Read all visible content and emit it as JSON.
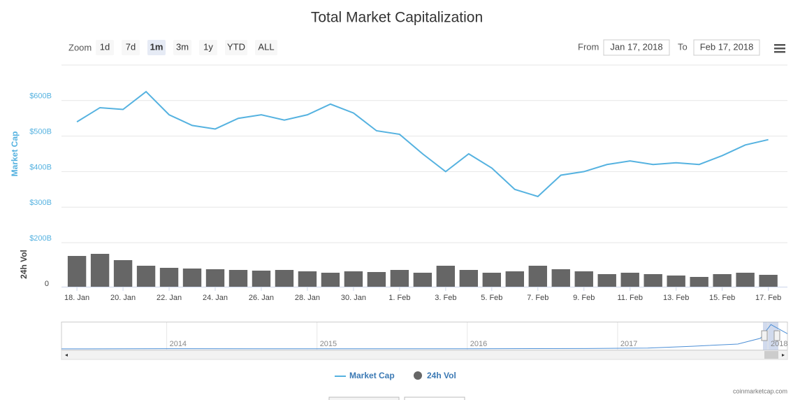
{
  "chart_data": [
    {
      "type": "line",
      "title": "Total Market Capitalization",
      "ylabel": "Market Cap",
      "categories": [
        "18. Jan",
        null,
        "20. Jan",
        null,
        "22. Jan",
        null,
        "24. Jan",
        null,
        "26. Jan",
        null,
        "28. Jan",
        null,
        "30. Jan",
        null,
        "1. Feb",
        null,
        "3. Feb",
        null,
        "5. Feb",
        null,
        "7. Feb",
        null,
        "9. Feb",
        null,
        "11. Feb",
        null,
        "13. Feb",
        null,
        "15. Feb",
        null,
        "17. Feb"
      ],
      "series": [
        {
          "name": "Market Cap",
          "color": "#55b2e0",
          "values": [
            540,
            580,
            575,
            625,
            560,
            530,
            520,
            550,
            560,
            545,
            560,
            590,
            565,
            515,
            505,
            450,
            400,
            450,
            410,
            350,
            330,
            390,
            400,
            420,
            430,
            420,
            425,
            420,
            445,
            475,
            490
          ]
        }
      ],
      "ylim": [
        200,
        700
      ],
      "yticks": [
        {
          "value": 200,
          "label": "$200B"
        },
        {
          "value": 300,
          "label": "$300B"
        },
        {
          "value": 400,
          "label": "$400B"
        },
        {
          "value": 500,
          "label": "$500B"
        },
        {
          "value": 600,
          "label": "$600B"
        }
      ],
      "grid": true
    },
    {
      "type": "bar",
      "ylabel": "24h Vol",
      "series": [
        {
          "name": "24h Vol",
          "color": "#666666",
          "values": [
            44,
            47,
            38,
            30,
            27,
            26,
            25,
            24,
            23,
            24,
            22,
            20,
            22,
            21,
            24,
            20,
            30,
            24,
            20,
            22,
            30,
            25,
            22,
            18,
            20,
            18,
            16,
            14,
            18,
            20,
            17
          ]
        }
      ],
      "ylim": [
        0,
        60
      ],
      "yticks": [
        0
      ]
    },
    {
      "type": "line",
      "x": [
        2013.3,
        2014,
        2015,
        2016,
        2016.8,
        2017.2,
        2017.5,
        2017.8,
        2017.95,
        2018.02,
        2018.13
      ],
      "values": [
        2,
        10,
        5,
        7,
        15,
        30,
        90,
        160,
        350,
        800,
        500
      ],
      "color": "#4d8fd6",
      "xlim": [
        2013.3,
        2018.13
      ],
      "ylim": [
        0,
        850
      ],
      "xticks": [
        2014,
        2015,
        2016,
        2017,
        2018
      ]
    }
  ],
  "toolbar": {
    "zoom_label": "Zoom",
    "buttons": [
      "1d",
      "7d",
      "1m",
      "3m",
      "1y",
      "YTD",
      "ALL"
    ],
    "selected_index": 2,
    "from_label": "From",
    "from": "Jan 17, 2018",
    "to_label": "To",
    "to": "Feb 17, 2018"
  },
  "credit": "coinmarketcap.com"
}
